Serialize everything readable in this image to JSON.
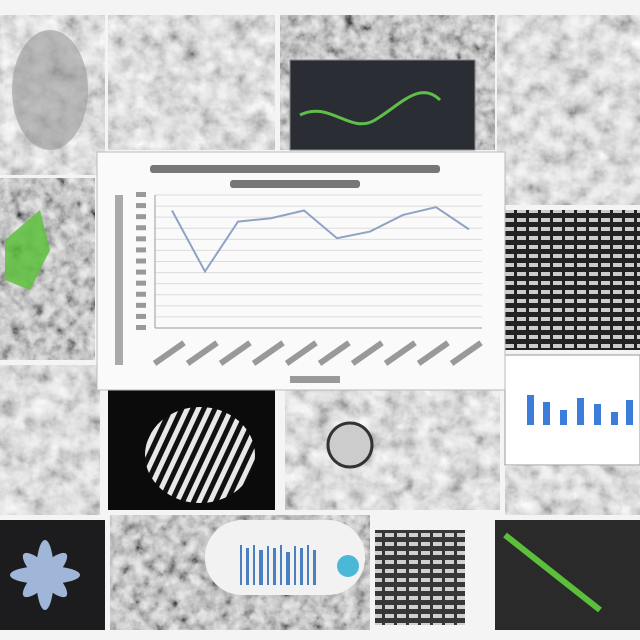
{
  "chart_data": {
    "type": "line",
    "color": "#8fa3c4",
    "values": [
      10.6,
      5.1,
      9.6,
      9.9,
      10.6,
      8.1,
      8.7,
      10.2,
      10.9,
      8.9
    ],
    "ylim": [
      0,
      12
    ]
  }
}
